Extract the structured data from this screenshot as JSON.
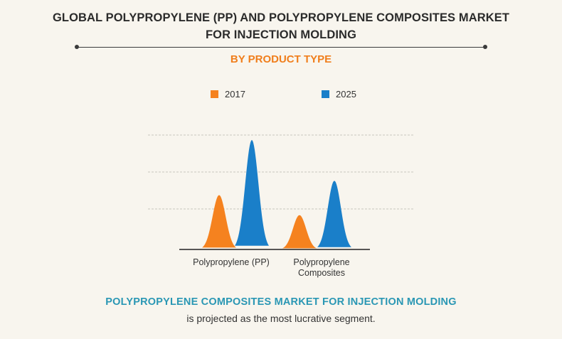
{
  "header": {
    "title_line1": "GLOBAL POLYPROPYLENE (PP) AND POLYPROPYLENE COMPOSITES MARKET",
    "title_line2": "FOR INJECTION MOLDING",
    "subtitle": "BY PRODUCT TYPE"
  },
  "chart_data": {
    "type": "area",
    "categories": [
      "Polypropylene (PP)",
      "Polypropylene Composites"
    ],
    "series": [
      {
        "name": "2017",
        "color": "#f5821f",
        "values": [
          76,
          48
        ]
      },
      {
        "name": "2025",
        "color": "#1a7fc9",
        "values": [
          153,
          96
        ]
      }
    ],
    "ylim": [
      0,
      160
    ],
    "grid": true,
    "legend_position": "top-center"
  },
  "category_labels": {
    "pp": "Polypropylene (PP)",
    "composites_line1": "Polypropylene",
    "composites_line2": "Composites"
  },
  "footer": {
    "headline": "POLYPROPYLENE COMPOSITES MARKET FOR INJECTION MOLDING",
    "text": "is projected as the most lucrative segment."
  }
}
